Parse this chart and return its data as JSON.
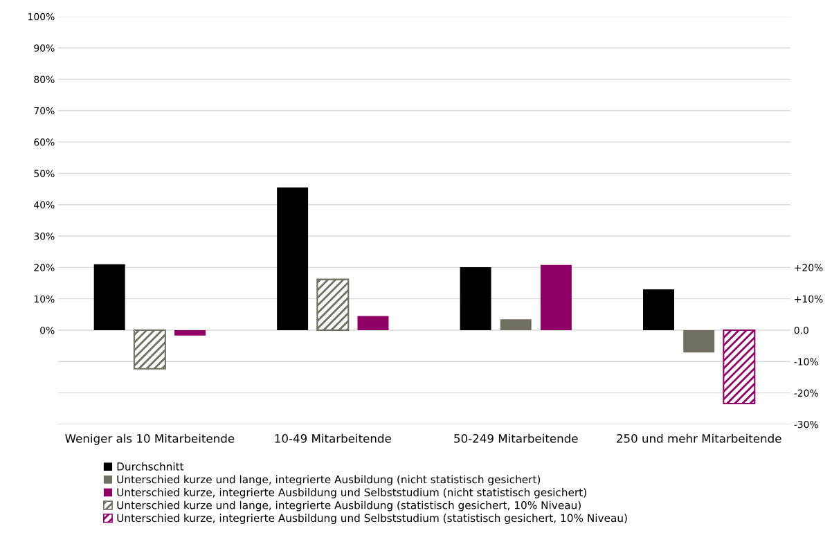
{
  "chart_data": {
    "type": "bar",
    "categories": [
      "Weniger als 10 Mitarbeitende",
      "10-49 Mitarbeitende",
      "50-249 Mitarbeitende",
      "250 und mehr Mitarbeitende"
    ],
    "series": [
      {
        "name": "Durchschnitt",
        "color": "#000000",
        "values": [
          21.0,
          45.5,
          20.1,
          13.0
        ]
      },
      {
        "name": "Unterschied kurze und lange, integrierte Ausbildung (nicht statistisch gesichert)",
        "color": "#6f6f62",
        "values": [
          null,
          null,
          3.5,
          -7.1
        ]
      },
      {
        "name": "Unterschied kurze, integrierte Ausbildung und Selbststudium (nicht statistisch gesichert)",
        "color": "#8e0064",
        "values": [
          -1.7,
          4.5,
          20.8,
          null
        ]
      },
      {
        "name": "Unterschied kurze und lange, integrierte Ausbildung (statistisch gesichert, 10% Niveau)",
        "color": "#6f6f62",
        "values": [
          -12.3,
          16.2,
          null,
          null
        ]
      },
      {
        "name": "Unterschied kurze, integrierte Ausbildung und Selbststudium (statistisch gesichert, 10% Niveau)",
        "color": "#8e0064",
        "values": [
          null,
          null,
          null,
          -23.4
        ]
      }
    ],
    "ylim": [
      -30,
      100
    ],
    "yticks": [
      {
        "value": 0,
        "label": "0%"
      },
      {
        "value": 10,
        "label": "10%"
      },
      {
        "value": 20,
        "label": "20%"
      },
      {
        "value": 30,
        "label": "30%"
      },
      {
        "value": 40,
        "label": "40%"
      },
      {
        "value": 50,
        "label": "50%"
      },
      {
        "value": 60,
        "label": "60%"
      },
      {
        "value": 70,
        "label": "70%"
      },
      {
        "value": 80,
        "label": "80%"
      },
      {
        "value": 90,
        "label": "90%"
      },
      {
        "value": 100,
        "label": "100%"
      }
    ],
    "y2lim": [
      -30,
      100
    ],
    "y2ticks": [
      {
        "value": -30,
        "label": "-30%"
      },
      {
        "value": -20,
        "label": "-20%"
      },
      {
        "value": -10,
        "label": "-10%"
      },
      {
        "value": 0,
        "label": "0.0"
      },
      {
        "value": 10,
        "label": "+10%"
      },
      {
        "value": 20,
        "label": "+20%"
      }
    ],
    "grid": "y",
    "legend": "bottom"
  }
}
